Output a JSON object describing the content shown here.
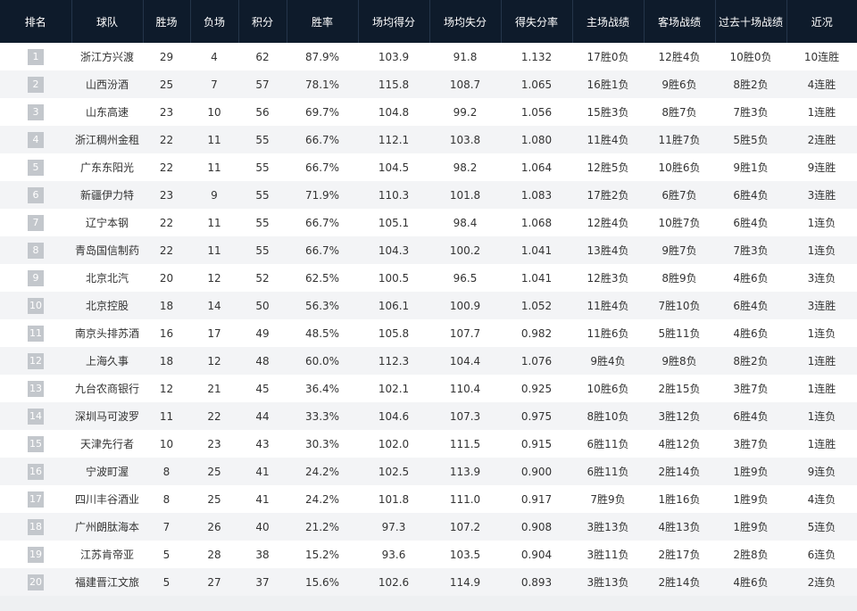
{
  "headers": [
    "排名",
    "球队",
    "胜场",
    "负场",
    "积分",
    "胜率",
    "场均得分",
    "场均失分",
    "得失分率",
    "主场战绩",
    "客场战绩",
    "过去十场战绩",
    "近况"
  ],
  "rows": [
    [
      "1",
      "浙江方兴渡",
      "29",
      "4",
      "62",
      "87.9%",
      "103.9",
      "91.8",
      "1.132",
      "17胜0负",
      "12胜4负",
      "10胜0负",
      "10连胜"
    ],
    [
      "2",
      "山西汾酒",
      "25",
      "7",
      "57",
      "78.1%",
      "115.8",
      "108.7",
      "1.065",
      "16胜1负",
      "9胜6负",
      "8胜2负",
      "4连胜"
    ],
    [
      "3",
      "山东高速",
      "23",
      "10",
      "56",
      "69.7%",
      "104.8",
      "99.2",
      "1.056",
      "15胜3负",
      "8胜7负",
      "7胜3负",
      "1连胜"
    ],
    [
      "4",
      "浙江稠州金租",
      "22",
      "11",
      "55",
      "66.7%",
      "112.1",
      "103.8",
      "1.080",
      "11胜4负",
      "11胜7负",
      "5胜5负",
      "2连胜"
    ],
    [
      "5",
      "广东东阳光",
      "22",
      "11",
      "55",
      "66.7%",
      "104.5",
      "98.2",
      "1.064",
      "12胜5负",
      "10胜6负",
      "9胜1负",
      "9连胜"
    ],
    [
      "6",
      "新疆伊力特",
      "23",
      "9",
      "55",
      "71.9%",
      "110.3",
      "101.8",
      "1.083",
      "17胜2负",
      "6胜7负",
      "6胜4负",
      "3连胜"
    ],
    [
      "7",
      "辽宁本钢",
      "22",
      "11",
      "55",
      "66.7%",
      "105.1",
      "98.4",
      "1.068",
      "12胜4负",
      "10胜7负",
      "6胜4负",
      "1连负"
    ],
    [
      "8",
      "青岛国信制药",
      "22",
      "11",
      "55",
      "66.7%",
      "104.3",
      "100.2",
      "1.041",
      "13胜4负",
      "9胜7负",
      "7胜3负",
      "1连负"
    ],
    [
      "9",
      "北京北汽",
      "20",
      "12",
      "52",
      "62.5%",
      "100.5",
      "96.5",
      "1.041",
      "12胜3负",
      "8胜9负",
      "4胜6负",
      "3连负"
    ],
    [
      "10",
      "北京控股",
      "18",
      "14",
      "50",
      "56.3%",
      "106.1",
      "100.9",
      "1.052",
      "11胜4负",
      "7胜10负",
      "6胜4负",
      "3连胜"
    ],
    [
      "11",
      "南京头排苏酒",
      "16",
      "17",
      "49",
      "48.5%",
      "105.8",
      "107.7",
      "0.982",
      "11胜6负",
      "5胜11负",
      "4胜6负",
      "1连负"
    ],
    [
      "12",
      "上海久事",
      "18",
      "12",
      "48",
      "60.0%",
      "112.3",
      "104.4",
      "1.076",
      "9胜4负",
      "9胜8负",
      "8胜2负",
      "1连胜"
    ],
    [
      "13",
      "九台农商银行",
      "12",
      "21",
      "45",
      "36.4%",
      "102.1",
      "110.4",
      "0.925",
      "10胜6负",
      "2胜15负",
      "3胜7负",
      "1连胜"
    ],
    [
      "14",
      "深圳马可波罗",
      "11",
      "22",
      "44",
      "33.3%",
      "104.6",
      "107.3",
      "0.975",
      "8胜10负",
      "3胜12负",
      "6胜4负",
      "1连负"
    ],
    [
      "15",
      "天津先行者",
      "10",
      "23",
      "43",
      "30.3%",
      "102.0",
      "111.5",
      "0.915",
      "6胜11负",
      "4胜12负",
      "3胜7负",
      "1连胜"
    ],
    [
      "16",
      "宁波町渥",
      "8",
      "25",
      "41",
      "24.2%",
      "102.5",
      "113.9",
      "0.900",
      "6胜11负",
      "2胜14负",
      "1胜9负",
      "9连负"
    ],
    [
      "17",
      "四川丰谷酒业",
      "8",
      "25",
      "41",
      "24.2%",
      "101.8",
      "111.0",
      "0.917",
      "7胜9负",
      "1胜16负",
      "1胜9负",
      "4连负"
    ],
    [
      "18",
      "广州朗肽海本",
      "7",
      "26",
      "40",
      "21.2%",
      "97.3",
      "107.2",
      "0.908",
      "3胜13负",
      "4胜13负",
      "1胜9负",
      "5连负"
    ],
    [
      "19",
      "江苏肯帝亚",
      "5",
      "28",
      "38",
      "15.2%",
      "93.6",
      "103.5",
      "0.904",
      "3胜11负",
      "2胜17负",
      "2胜8负",
      "6连负"
    ],
    [
      "20",
      "福建晋江文旅",
      "5",
      "27",
      "37",
      "15.6%",
      "102.6",
      "114.9",
      "0.893",
      "3胜13负",
      "2胜14负",
      "4胜6负",
      "2连负"
    ]
  ],
  "colors": {
    "header_bg": "#0e1b2b",
    "header_text": "#ffffff",
    "rank_box": "#c3c7cc",
    "row_alt": "#f3f4f6"
  }
}
